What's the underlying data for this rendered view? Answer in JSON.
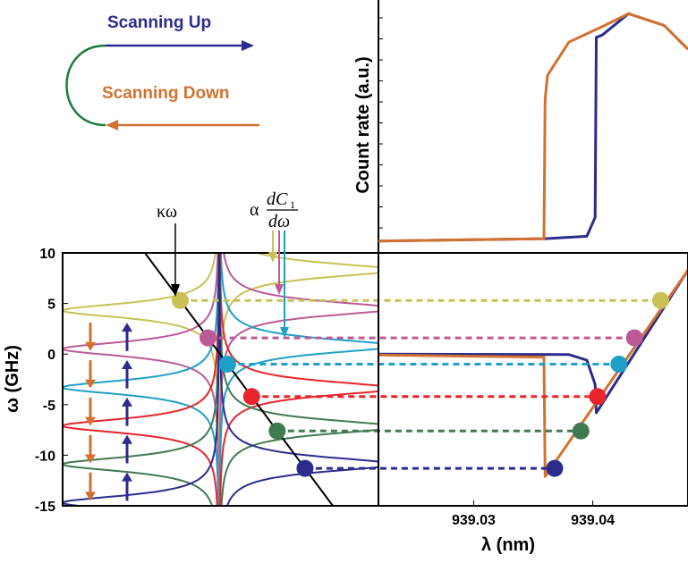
{
  "colors": {
    "up": "#2b2c8e",
    "down": "#d2722e",
    "connector": "#1e7a3c",
    "yellow": "#c9c154",
    "pink": "#bb5a96",
    "cyan": "#1ea0c8",
    "red": "#e8252a",
    "green": "#3f7a52",
    "navy": "#2b2c8e",
    "black": "#000000"
  },
  "legend": {
    "up_label": "Scanning Up",
    "down_label": "Scanning Down"
  },
  "annotations": {
    "kappa_omega": "κω",
    "alpha": "α",
    "dC": "dC",
    "dC_sub": "1",
    "domega": "dω"
  },
  "chart_data": [
    {
      "type": "line",
      "id": "count-rate-panel",
      "ylabel": "Count rate (a.u.)",
      "xlim": [
        939.022,
        939.048
      ],
      "series": [
        {
          "name": "Scanning Up",
          "color": "#2b2c8e",
          "x": [
            939.022,
            939.036,
            939.0395,
            939.0402,
            939.0403,
            939.0408,
            939.043,
            939.046,
            939.048
          ],
          "y": [
            0.02,
            0.03,
            0.04,
            0.12,
            0.88,
            0.89,
            0.98,
            0.93,
            0.83
          ]
        },
        {
          "name": "Scanning Down",
          "color": "#d2722e",
          "x": [
            939.022,
            939.0359,
            939.036,
            939.0362,
            939.038,
            939.041,
            939.043,
            939.046,
            939.048
          ],
          "y": [
            0.02,
            0.03,
            0.62,
            0.72,
            0.86,
            0.93,
            0.98,
            0.93,
            0.83
          ]
        }
      ]
    },
    {
      "type": "line",
      "id": "detuning-vs-wavelength-panel",
      "xlabel": "λ (nm)",
      "xlim": [
        939.022,
        939.048
      ],
      "ylim": [
        -15,
        10
      ],
      "xticks": [
        939.03,
        939.04
      ],
      "xtick_labels": [
        "939.03",
        "939.04"
      ],
      "series": [
        {
          "name": "Scanning Up",
          "color": "#2b2c8e",
          "x": [
            939.022,
            939.038,
            939.0395,
            939.0402,
            939.0403,
            939.048
          ],
          "y": [
            0.0,
            -0.05,
            -0.6,
            -3.0,
            -5.8,
            8.3
          ]
        },
        {
          "name": "Scanning Down",
          "color": "#d2722e",
          "x": [
            939.022,
            939.0359,
            939.036,
            939.048
          ],
          "y": [
            -0.1,
            -0.3,
            -12.1,
            8.3
          ]
        }
      ],
      "markers": [
        {
          "x": 939.0457,
          "y": 5.3,
          "color": "#c9c154"
        },
        {
          "x": 939.0435,
          "y": 1.6,
          "color": "#bb5a96"
        },
        {
          "x": 939.0422,
          "y": -1.0,
          "color": "#1ea0c8"
        },
        {
          "x": 939.0404,
          "y": -4.2,
          "color": "#e8252a"
        },
        {
          "x": 939.039,
          "y": -7.6,
          "color": "#3f7a52"
        },
        {
          "x": 939.0368,
          "y": -11.3,
          "color": "#2b2c8e"
        }
      ]
    },
    {
      "type": "line",
      "id": "omega-panel",
      "ylabel": "ω (GHz)",
      "ylim": [
        -15,
        10
      ],
      "yticks": [
        10,
        5,
        0,
        -5,
        -10,
        -15
      ],
      "ytick_labels": [
        "10",
        "5",
        "0",
        "-5",
        "-10",
        "-15"
      ],
      "lorentzian_centers": [
        8.3,
        4.5,
        0.8,
        -3.4,
        -7.2,
        -10.9,
        -14.7
      ],
      "colors": [
        "#c9c154",
        "#bb5a96",
        "#1ea0c8",
        "#e8252a",
        "#3f7a52",
        "#2b2c8e"
      ],
      "markers": [
        {
          "y": 5.3,
          "color": "#c9c154"
        },
        {
          "y": 1.6,
          "color": "#bb5a96"
        },
        {
          "y": -1.0,
          "color": "#1ea0c8"
        },
        {
          "y": -4.2,
          "color": "#e8252a"
        },
        {
          "y": -7.6,
          "color": "#3f7a52"
        },
        {
          "y": -11.3,
          "color": "#2b2c8e"
        }
      ],
      "arrow_rows": [
        -2.8,
        -6.5,
        -10.2,
        -13.9,
        0.9
      ]
    }
  ]
}
